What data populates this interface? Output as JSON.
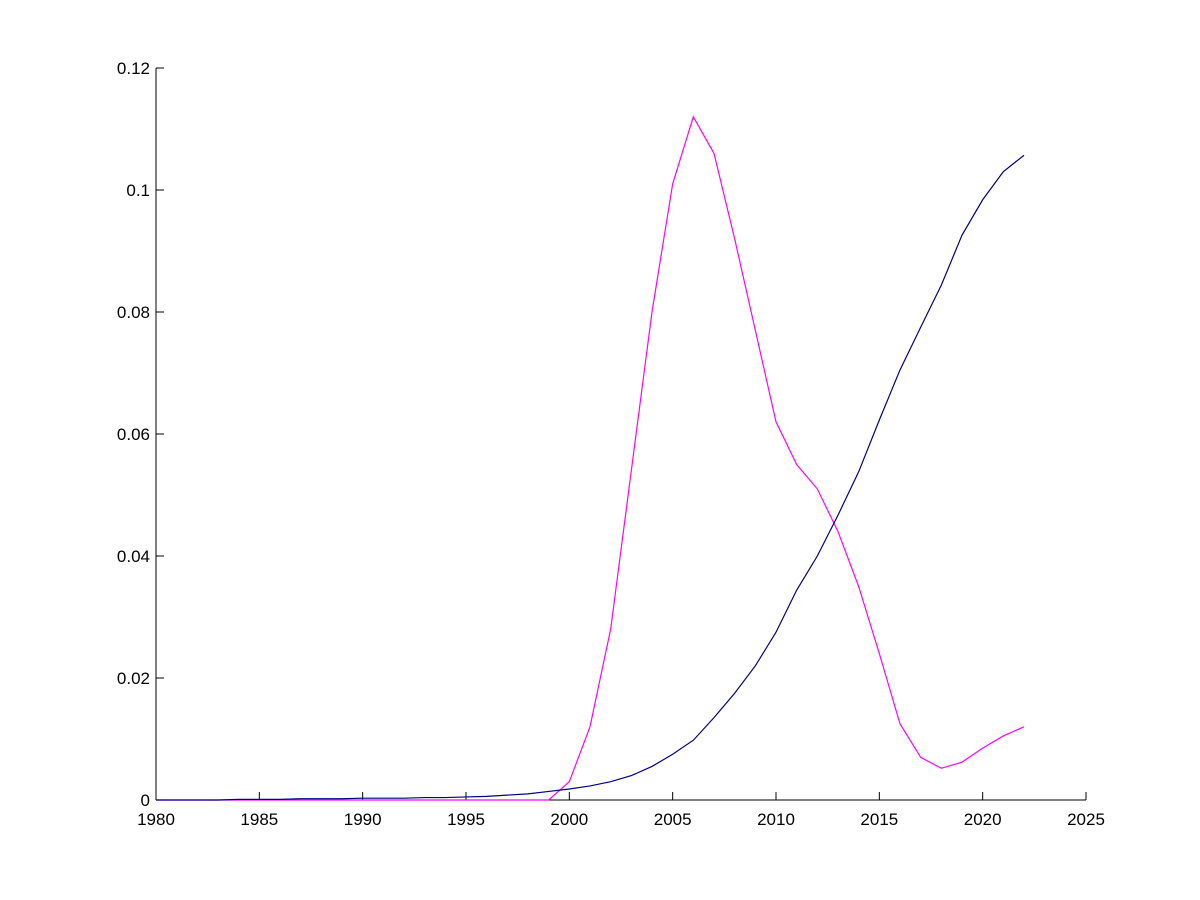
{
  "chart_data": {
    "type": "line",
    "x": [
      1980,
      1981,
      1982,
      1983,
      1984,
      1985,
      1986,
      1987,
      1988,
      1989,
      1990,
      1991,
      1992,
      1993,
      1994,
      1995,
      1996,
      1997,
      1998,
      1999,
      2000,
      2001,
      2002,
      2003,
      2004,
      2005,
      2006,
      2007,
      2008,
      2009,
      2010,
      2011,
      2012,
      2013,
      2014,
      2015,
      2016,
      2017,
      2018,
      2019,
      2020,
      2021,
      2022
    ],
    "series": [
      {
        "color": "#ff00ff",
        "values": [
          0,
          0,
          0,
          0,
          0,
          0,
          0,
          0,
          0,
          0,
          0,
          0,
          0,
          0,
          0,
          0,
          0,
          0,
          0,
          0,
          0.003,
          0.012,
          0.028,
          0.054,
          0.08,
          0.101,
          0.112,
          0.106,
          0.092,
          0.077,
          0.062,
          0.055,
          0.051,
          0.044,
          0.035,
          0.024,
          0.0125,
          0.007,
          0.0052,
          0.0062,
          0.0085,
          0.0105,
          0.012
        ]
      },
      {
        "color": "#000080",
        "values": [
          0,
          0,
          0,
          0,
          0.0001,
          0.0001,
          0.0001,
          0.0002,
          0.0002,
          0.0002,
          0.0003,
          0.0003,
          0.0003,
          0.0004,
          0.0004,
          0.0005,
          0.0006,
          0.0008,
          0.001,
          0.0014,
          0.0018,
          0.0023,
          0.003,
          0.004,
          0.0055,
          0.0075,
          0.0098,
          0.0135,
          0.0175,
          0.022,
          0.0275,
          0.0344,
          0.04,
          0.0467,
          0.0538,
          0.0623,
          0.0705,
          0.0775,
          0.0844,
          0.0926,
          0.0984,
          0.103,
          0.1057
        ]
      }
    ],
    "xlim": [
      1980,
      2025
    ],
    "xticks": [
      1980,
      1985,
      1990,
      1995,
      2000,
      2005,
      2010,
      2015,
      2020,
      2025
    ],
    "ylim": [
      0,
      0.12
    ],
    "yticks": [
      0,
      0.02,
      0.04,
      0.06,
      0.08,
      0.1,
      0.12
    ],
    "grid": false
  }
}
